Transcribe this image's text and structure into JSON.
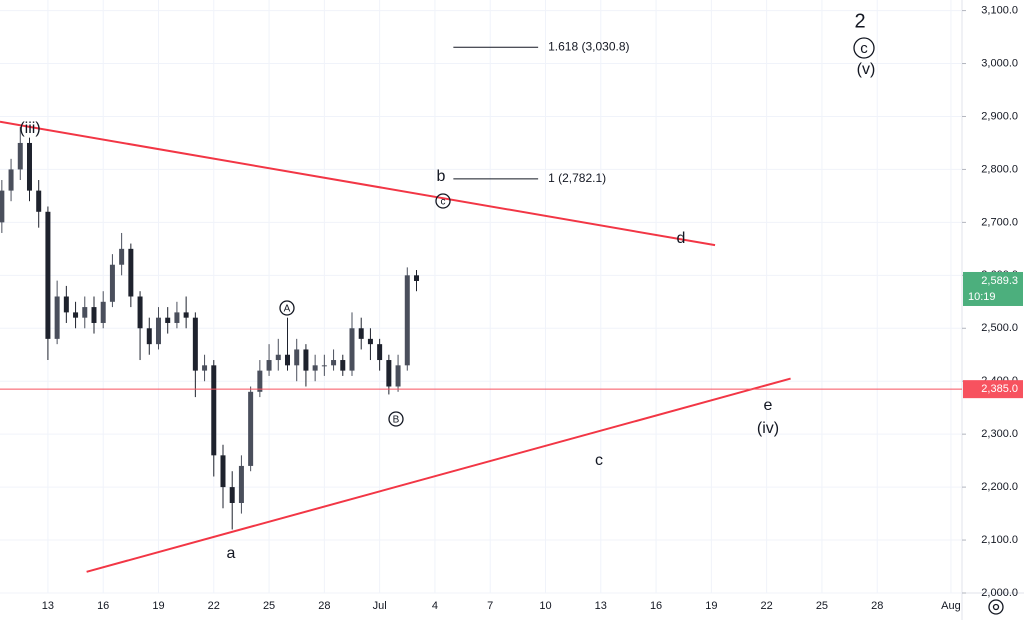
{
  "chart_data": {
    "type": "candlestick",
    "xlim": [
      10.4,
      62.6
    ],
    "ylim": [
      2000,
      3120
    ],
    "grid": true,
    "xticks": [
      {
        "value": 13,
        "label": "13"
      },
      {
        "value": 16,
        "label": "16"
      },
      {
        "value": 19,
        "label": "19"
      },
      {
        "value": 22,
        "label": "22"
      },
      {
        "value": 25,
        "label": "25"
      },
      {
        "value": 28,
        "label": "28"
      },
      {
        "value": 31,
        "label": "Jul"
      },
      {
        "value": 34,
        "label": "4"
      },
      {
        "value": 37,
        "label": "7"
      },
      {
        "value": 40,
        "label": "10"
      },
      {
        "value": 43,
        "label": "13"
      },
      {
        "value": 46,
        "label": "16"
      },
      {
        "value": 49,
        "label": "19"
      },
      {
        "value": 52,
        "label": "22"
      },
      {
        "value": 55,
        "label": "25"
      },
      {
        "value": 58,
        "label": "28"
      },
      {
        "value": 62,
        "label": "Aug"
      }
    ],
    "yticks": [
      {
        "value": 2000,
        "label": "2,000.0"
      },
      {
        "value": 2100,
        "label": "2,100.0"
      },
      {
        "value": 2200,
        "label": "2,200.0"
      },
      {
        "value": 2300,
        "label": "2,300.0"
      },
      {
        "value": 2400,
        "label": "2,400.0"
      },
      {
        "value": 2500,
        "label": "2,500.0"
      },
      {
        "value": 2600,
        "label": "2,600.0"
      },
      {
        "value": 2700,
        "label": "2,700.0"
      },
      {
        "value": 2800,
        "label": "2,800.0"
      },
      {
        "value": 2900,
        "label": "2,900.0"
      },
      {
        "value": 3000,
        "label": "3,000.0"
      },
      {
        "value": 3100,
        "label": "3,100.0"
      }
    ],
    "up_color": "#4a4f5c",
    "down_color": "#1e222d",
    "candles": {
      "x": [
        10.5,
        11,
        11.5,
        12,
        12.5,
        13,
        13.5,
        14,
        14.5,
        15,
        15.5,
        16,
        16.5,
        17,
        17.5,
        18,
        18.5,
        19,
        19.5,
        20,
        20.5,
        21,
        21.5,
        22,
        22.5,
        23,
        23.5,
        24,
        24.5,
        25,
        25.5,
        26,
        26.5,
        27,
        27.5,
        28,
        28.5,
        29,
        29.5,
        30,
        30.5,
        31,
        31.5,
        32,
        32.5,
        33
      ],
      "open": [
        2700,
        2760,
        2800,
        2850,
        2760,
        2720,
        2480,
        2560,
        2530,
        2520,
        2540,
        2510,
        2550,
        2620,
        2650,
        2560,
        2500,
        2470,
        2520,
        2510,
        2530,
        2520,
        2420,
        2430,
        2260,
        2200,
        2170,
        2240,
        2380,
        2420,
        2440,
        2450,
        2430,
        2460,
        2420,
        2430,
        2430,
        2440,
        2420,
        2500,
        2480,
        2470,
        2440,
        2390,
        2430,
        2600
      ],
      "high": [
        2780,
        2820,
        2880,
        2860,
        2780,
        2730,
        2590,
        2580,
        2550,
        2560,
        2560,
        2570,
        2640,
        2680,
        2660,
        2570,
        2520,
        2540,
        2540,
        2550,
        2560,
        2530,
        2450,
        2440,
        2280,
        2230,
        2260,
        2390,
        2440,
        2470,
        2480,
        2520,
        2480,
        2470,
        2450,
        2450,
        2460,
        2450,
        2530,
        2520,
        2500,
        2480,
        2450,
        2450,
        2615,
        2610
      ],
      "low": [
        2680,
        2740,
        2780,
        2740,
        2690,
        2440,
        2470,
        2510,
        2500,
        2500,
        2490,
        2500,
        2540,
        2600,
        2540,
        2440,
        2450,
        2460,
        2490,
        2500,
        2500,
        2370,
        2400,
        2220,
        2160,
        2120,
        2150,
        2230,
        2370,
        2410,
        2420,
        2420,
        2400,
        2390,
        2400,
        2410,
        2420,
        2410,
        2410,
        2460,
        2440,
        2420,
        2375,
        2380,
        2420,
        2570
      ],
      "close": [
        2760,
        2800,
        2850,
        2760,
        2720,
        2480,
        2560,
        2530,
        2520,
        2540,
        2510,
        2550,
        2620,
        2650,
        2560,
        2500,
        2470,
        2520,
        2510,
        2530,
        2520,
        2420,
        2430,
        2260,
        2200,
        2170,
        2240,
        2380,
        2420,
        2440,
        2450,
        2430,
        2460,
        2420,
        2430,
        2430,
        2440,
        2420,
        2500,
        2480,
        2470,
        2440,
        2390,
        2430,
        2600,
        2589.3
      ]
    },
    "trendlines": [
      {
        "color": "#f23645",
        "x": [
          10.4,
          49.2
        ],
        "y": [
          2890,
          2657
        ]
      },
      {
        "color": "#f23645",
        "x": [
          15.1,
          53.3
        ],
        "y": [
          2040,
          2405
        ]
      }
    ],
    "hline": {
      "value": 2385,
      "label": "2,385.0",
      "color": "#f7525f"
    },
    "last_price": {
      "value": 2589.3,
      "label": "2,589.3",
      "countdown": "10:19",
      "color": "#4caf7d"
    },
    "fib_levels": [
      {
        "value": 3030.8,
        "label": "1.618 (3,030.8)",
        "x": [
          35,
          39.6
        ]
      },
      {
        "value": 2782.1,
        "label": "1 (2,782.1)",
        "x": [
          35,
          39.6
        ]
      }
    ],
    "annotations": [
      "(iii)",
      "b",
      "c",
      "d",
      "A",
      "B",
      "a",
      "c",
      "e",
      "(iv)",
      "2",
      "c",
      "(v)"
    ]
  }
}
